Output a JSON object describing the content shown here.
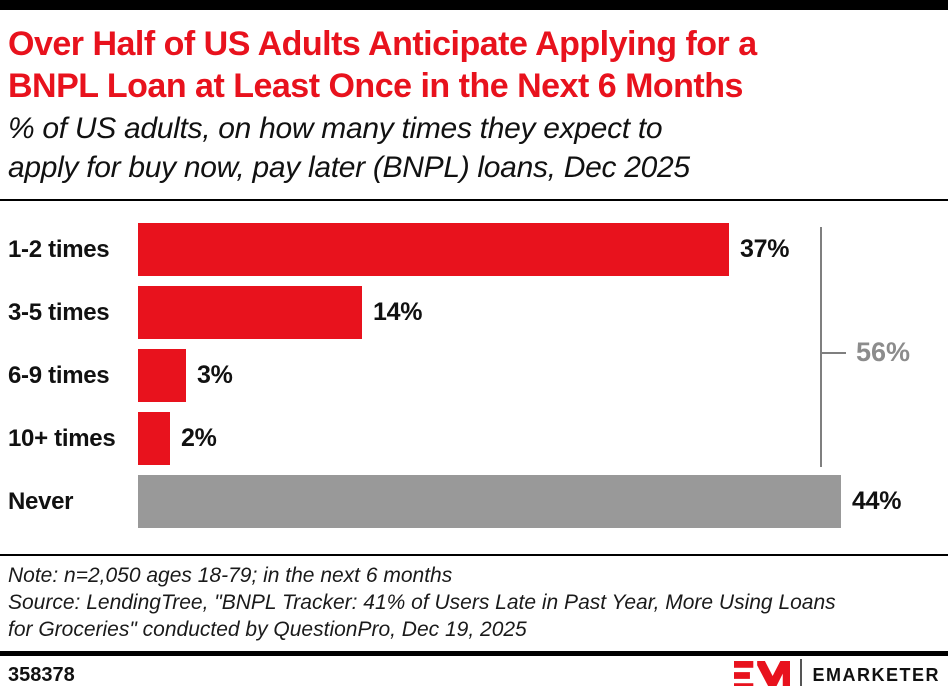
{
  "brand": {
    "accent_red": "#E8121D",
    "bar_gray": "#999999",
    "bracket_gray": "#7f7f7f"
  },
  "header": {
    "title_lines": [
      "Over Half of US Adults Anticipate Applying for a",
      "BNPL Loan at Least Once in the Next 6 Months"
    ],
    "subtitle_lines": [
      "% of US adults, on how many times they expect to",
      "apply for buy now, pay later (BNPL) loans, Dec 2025"
    ]
  },
  "chart_data": {
    "type": "bar",
    "orientation": "horizontal",
    "title": "Over Half of US Adults Anticipate Applying for a BNPL Loan at Least Once in the Next 6 Months",
    "subtitle": "% of US adults, on how many times they expect to apply for buy now, pay later (BNPL) loans, Dec 2025",
    "categories": [
      "1-2 times",
      "3-5 times",
      "6-9 times",
      "10+ times",
      "Never"
    ],
    "values": [
      37,
      14,
      3,
      2,
      44
    ],
    "value_labels": [
      "37%",
      "14%",
      "3%",
      "2%",
      "44%"
    ],
    "unit": "%",
    "colors": [
      "#E8121D",
      "#E8121D",
      "#E8121D",
      "#E8121D",
      "#999999"
    ],
    "xlim": [
      0,
      44
    ],
    "grid": false,
    "value_axis_visible": false,
    "annotation": {
      "label": "56%",
      "covers": [
        "1-2 times",
        "3-5 times",
        "6-9 times",
        "10+ times"
      ],
      "meaning": "bracketed sum of the four categories that expect to apply at least once"
    }
  },
  "footer": {
    "note": "Note: n=2,050 ages 18-79; in the next 6 months",
    "source_lines": [
      "Source: LendingTree, \"BNPL Tracker: 41% of Users Late in Past Year, More Using Loans",
      "for Groceries\" conducted by QuestionPro, Dec 19, 2025"
    ],
    "chart_id": "358378",
    "logo_wordmark": "EMARKETER"
  }
}
